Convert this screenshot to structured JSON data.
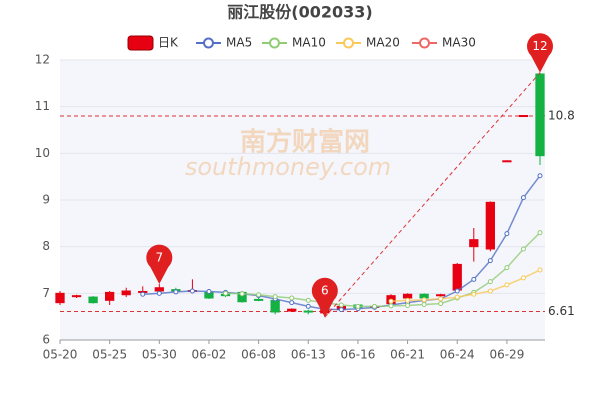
{
  "chart_data": {
    "type": "candlestick",
    "title": "丽江股份(002033)",
    "watermark": [
      "南方财富网",
      "southmoney.com"
    ],
    "categories": [
      "05-20",
      null,
      null,
      "05-25",
      null,
      null,
      "05-30",
      null,
      null,
      "06-02",
      null,
      null,
      "06-08",
      null,
      null,
      "06-13",
      null,
      null,
      "06-16",
      null,
      null,
      "06-21",
      null,
      null,
      "06-24",
      null,
      null,
      "06-29",
      null,
      null
    ],
    "candles": {
      "name": "日K",
      "up_color": "#e60012",
      "down_color": "#14b143",
      "open": [
        6.8,
        6.93,
        6.92,
        6.85,
        6.97,
        7.02,
        7.05,
        7.08,
        7.05,
        7.02,
        6.98,
        7.02,
        6.87,
        6.85,
        6.62,
        6.62,
        6.58,
        6.65,
        6.75,
        6.7,
        6.78,
        6.9,
        6.98,
        6.95,
        7.07,
        8.0,
        7.95,
        9.83,
        10.8,
        11.7
      ],
      "close": [
        7.0,
        6.95,
        6.8,
        7.02,
        7.05,
        7.04,
        7.12,
        7.05,
        7.06,
        6.9,
        6.95,
        6.82,
        6.85,
        6.6,
        6.66,
        6.6,
        6.68,
        6.72,
        6.7,
        6.72,
        6.95,
        6.98,
        6.9,
        6.97,
        7.62,
        8.15,
        8.95,
        9.84,
        10.81,
        9.95
      ],
      "low": [
        6.75,
        6.9,
        6.78,
        6.75,
        6.92,
        6.95,
        7.0,
        7.0,
        7.0,
        6.88,
        6.92,
        6.8,
        6.83,
        6.55,
        6.6,
        6.55,
        6.49,
        6.62,
        6.68,
        6.68,
        6.75,
        6.85,
        6.88,
        6.93,
        7.02,
        7.68,
        7.9,
        9.82,
        10.79,
        9.75
      ],
      "high": [
        7.05,
        6.97,
        6.94,
        7.05,
        7.12,
        7.15,
        7.2,
        7.12,
        7.3,
        7.05,
        7.0,
        7.05,
        6.9,
        6.88,
        6.68,
        6.65,
        6.75,
        6.75,
        6.77,
        6.74,
        6.98,
        7.0,
        7.0,
        6.99,
        7.65,
        8.4,
        8.97,
        9.85,
        10.82,
        11.73
      ]
    },
    "series": [
      {
        "name": "MA5",
        "color": "#5470c6",
        "values": [
          null,
          null,
          null,
          null,
          null,
          6.98,
          7.0,
          7.03,
          7.05,
          7.04,
          7.02,
          6.99,
          6.95,
          6.88,
          6.8,
          6.72,
          6.66,
          6.65,
          6.67,
          6.7,
          6.75,
          6.8,
          6.85,
          6.88,
          7.05,
          7.3,
          7.7,
          8.28,
          9.05,
          9.52
        ]
      },
      {
        "name": "MA10",
        "color": "#91cc75",
        "values": [
          null,
          null,
          null,
          null,
          null,
          null,
          null,
          null,
          null,
          null,
          7.0,
          6.99,
          6.97,
          6.93,
          6.9,
          6.85,
          6.8,
          6.75,
          6.72,
          6.72,
          6.73,
          6.74,
          6.76,
          6.78,
          6.9,
          7.02,
          7.25,
          7.55,
          7.95,
          8.3
        ]
      },
      {
        "name": "MA20",
        "color": "#fac858",
        "values": [
          null,
          null,
          null,
          null,
          null,
          null,
          null,
          null,
          null,
          null,
          null,
          null,
          null,
          null,
          null,
          null,
          null,
          null,
          null,
          null,
          6.83,
          6.85,
          6.86,
          6.88,
          6.92,
          6.98,
          7.05,
          7.18,
          7.33,
          7.5
        ]
      },
      {
        "name": "MA30",
        "color": "#ee6666",
        "values": [
          null,
          null,
          null,
          null,
          null,
          null,
          null,
          null,
          null,
          null,
          null,
          null,
          null,
          null,
          null,
          null,
          null,
          null,
          null,
          null,
          null,
          null,
          null,
          null,
          null,
          null,
          null,
          null,
          null,
          null
        ]
      }
    ],
    "mark_points": [
      {
        "value": 7.2,
        "label": "7"
      },
      {
        "value": 6.49,
        "label": "6"
      },
      {
        "value": 11.73,
        "label": "12"
      }
    ],
    "hlines": [
      10.8,
      6.61
    ],
    "ylim": [
      6,
      12
    ],
    "yticks": [
      6,
      7,
      8,
      9,
      10,
      11,
      12
    ],
    "grid": true
  }
}
